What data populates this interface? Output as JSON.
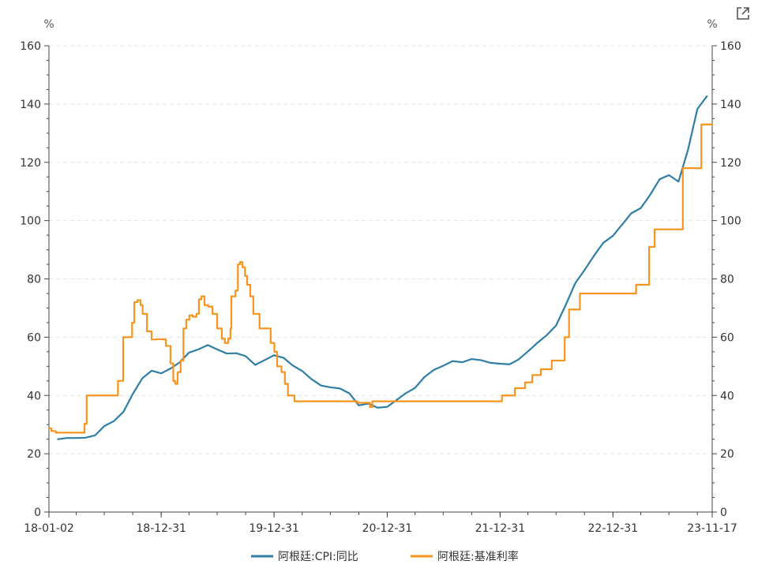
{
  "chart_data": {
    "type": "line",
    "title": "",
    "xlabel": "",
    "ylabel": "",
    "y_unit_left": "%",
    "y_unit_right": "%",
    "ylim": [
      0,
      160
    ],
    "y_ticks": [
      0,
      20,
      40,
      60,
      80,
      100,
      120,
      140,
      160
    ],
    "x_range": [
      "2018-01-02",
      "2023-11-17"
    ],
    "x_tick_labels": [
      {
        "date": "2018-01-02",
        "label": "18-01-02"
      },
      {
        "date": "2018-12-31",
        "label": "18-12-31"
      },
      {
        "date": "2019-12-31",
        "label": "19-12-31"
      },
      {
        "date": "2020-12-31",
        "label": "20-12-31"
      },
      {
        "date": "2021-12-31",
        "label": "21-12-31"
      },
      {
        "date": "2022-12-31",
        "label": "22-12-31"
      },
      {
        "date": "2023-11-17",
        "label": "23-11-17"
      }
    ],
    "grid": true,
    "legend_position": "bottom",
    "series": [
      {
        "name": "阿根廷:CPI:同比",
        "color": "#2e7ea6",
        "step": false,
        "points": [
          [
            "2018-01-31",
            25.0
          ],
          [
            "2018-02-28",
            25.4
          ],
          [
            "2018-03-31",
            25.4
          ],
          [
            "2018-04-30",
            25.5
          ],
          [
            "2018-05-31",
            26.3
          ],
          [
            "2018-06-30",
            29.5
          ],
          [
            "2018-07-31",
            31.2
          ],
          [
            "2018-08-31",
            34.4
          ],
          [
            "2018-09-30",
            40.5
          ],
          [
            "2018-10-31",
            45.9
          ],
          [
            "2018-11-30",
            48.5
          ],
          [
            "2018-12-31",
            47.6
          ],
          [
            "2019-01-31",
            49.3
          ],
          [
            "2019-02-28",
            51.3
          ],
          [
            "2019-03-31",
            54.7
          ],
          [
            "2019-04-30",
            55.8
          ],
          [
            "2019-05-31",
            57.3
          ],
          [
            "2019-06-30",
            55.8
          ],
          [
            "2019-07-31",
            54.4
          ],
          [
            "2019-08-31",
            54.5
          ],
          [
            "2019-09-30",
            53.5
          ],
          [
            "2019-10-31",
            50.5
          ],
          [
            "2019-11-30",
            52.1
          ],
          [
            "2019-12-31",
            53.8
          ],
          [
            "2020-01-31",
            52.9
          ],
          [
            "2020-02-29",
            50.3
          ],
          [
            "2020-03-31",
            48.4
          ],
          [
            "2020-04-30",
            45.6
          ],
          [
            "2020-05-31",
            43.4
          ],
          [
            "2020-06-30",
            42.8
          ],
          [
            "2020-07-31",
            42.4
          ],
          [
            "2020-08-31",
            40.7
          ],
          [
            "2020-09-30",
            36.6
          ],
          [
            "2020-10-31",
            37.2
          ],
          [
            "2020-11-30",
            35.8
          ],
          [
            "2020-12-31",
            36.1
          ],
          [
            "2021-01-31",
            38.5
          ],
          [
            "2021-02-28",
            40.7
          ],
          [
            "2021-03-31",
            42.6
          ],
          [
            "2021-04-30",
            46.3
          ],
          [
            "2021-05-31",
            48.8
          ],
          [
            "2021-06-30",
            50.2
          ],
          [
            "2021-07-31",
            51.8
          ],
          [
            "2021-08-31",
            51.4
          ],
          [
            "2021-09-30",
            52.5
          ],
          [
            "2021-10-31",
            52.1
          ],
          [
            "2021-11-30",
            51.2
          ],
          [
            "2021-12-31",
            50.9
          ],
          [
            "2022-01-31",
            50.7
          ],
          [
            "2022-02-28",
            52.3
          ],
          [
            "2022-03-31",
            55.1
          ],
          [
            "2022-04-30",
            58.0
          ],
          [
            "2022-05-31",
            60.7
          ],
          [
            "2022-06-30",
            64.0
          ],
          [
            "2022-07-31",
            71.0
          ],
          [
            "2022-08-31",
            78.5
          ],
          [
            "2022-09-30",
            83.0
          ],
          [
            "2022-10-31",
            88.0
          ],
          [
            "2022-11-30",
            92.4
          ],
          [
            "2022-12-31",
            94.8
          ],
          [
            "2023-01-31",
            98.8
          ],
          [
            "2023-02-28",
            102.5
          ],
          [
            "2023-03-31",
            104.3
          ],
          [
            "2023-04-30",
            108.8
          ],
          [
            "2023-05-31",
            114.2
          ],
          [
            "2023-06-30",
            115.6
          ],
          [
            "2023-07-31",
            113.4
          ],
          [
            "2023-08-31",
            124.4
          ],
          [
            "2023-09-30",
            138.3
          ],
          [
            "2023-10-31",
            142.7
          ]
        ]
      },
      {
        "name": "阿根廷:基准利率",
        "color": "#f7941d",
        "step": true,
        "points": [
          [
            "2018-01-02",
            28.75
          ],
          [
            "2018-01-10",
            27.8
          ],
          [
            "2018-01-24",
            27.25
          ],
          [
            "2018-04-26",
            27.25
          ],
          [
            "2018-04-27",
            30.25
          ],
          [
            "2018-05-04",
            40.0
          ],
          [
            "2018-08-13",
            45.0
          ],
          [
            "2018-08-30",
            60.0
          ],
          [
            "2018-09-28",
            65.0
          ],
          [
            "2018-10-05",
            72.0
          ],
          [
            "2018-10-15",
            72.7
          ],
          [
            "2018-10-25",
            71.0
          ],
          [
            "2018-11-01",
            68.0
          ],
          [
            "2018-11-15",
            62.0
          ],
          [
            "2018-11-30",
            59.2
          ],
          [
            "2018-12-15",
            59.3
          ],
          [
            "2018-12-31",
            59.25
          ],
          [
            "2019-01-15",
            57.0
          ],
          [
            "2019-01-30",
            51.0
          ],
          [
            "2019-02-08",
            45.0
          ],
          [
            "2019-02-14",
            44.0
          ],
          [
            "2019-02-22",
            48.0
          ],
          [
            "2019-03-04",
            52.0
          ],
          [
            "2019-03-13",
            63.0
          ],
          [
            "2019-03-22",
            66.0
          ],
          [
            "2019-04-01",
            67.5
          ],
          [
            "2019-04-12",
            67.0
          ],
          [
            "2019-04-24",
            68.0
          ],
          [
            "2019-05-02",
            73.0
          ],
          [
            "2019-05-10",
            74.0
          ],
          [
            "2019-05-20",
            71.0
          ],
          [
            "2019-06-01",
            70.5
          ],
          [
            "2019-06-15",
            68.0
          ],
          [
            "2019-06-30",
            63.0
          ],
          [
            "2019-07-15",
            59.5
          ],
          [
            "2019-07-25",
            58.0
          ],
          [
            "2019-08-05",
            59.5
          ],
          [
            "2019-08-12",
            63.0
          ],
          [
            "2019-08-15",
            74.0
          ],
          [
            "2019-08-28",
            76.0
          ],
          [
            "2019-09-05",
            85.0
          ],
          [
            "2019-09-12",
            85.8
          ],
          [
            "2019-09-20",
            84.0
          ],
          [
            "2019-09-28",
            81.0
          ],
          [
            "2019-10-05",
            78.0
          ],
          [
            "2019-10-15",
            74.0
          ],
          [
            "2019-10-25",
            68.0
          ],
          [
            "2019-11-14",
            63.0
          ],
          [
            "2019-12-20",
            58.0
          ],
          [
            "2020-01-01",
            55.0
          ],
          [
            "2020-01-10",
            50.0
          ],
          [
            "2020-01-24",
            48.0
          ],
          [
            "2020-02-04",
            44.0
          ],
          [
            "2020-02-14",
            40.0
          ],
          [
            "2020-03-06",
            38.0
          ],
          [
            "2020-09-17",
            38.0
          ],
          [
            "2020-09-25",
            37.5
          ],
          [
            "2020-11-05",
            36.0
          ],
          [
            "2020-11-13",
            38.0
          ],
          [
            "2022-01-06",
            40.0
          ],
          [
            "2022-02-17",
            42.5
          ],
          [
            "2022-03-22",
            44.5
          ],
          [
            "2022-04-14",
            47.0
          ],
          [
            "2022-05-12",
            49.0
          ],
          [
            "2022-06-16",
            52.0
          ],
          [
            "2022-07-28",
            60.0
          ],
          [
            "2022-08-11",
            69.5
          ],
          [
            "2022-09-15",
            75.0
          ],
          [
            "2023-03-16",
            78.0
          ],
          [
            "2023-04-27",
            91.0
          ],
          [
            "2023-05-15",
            97.0
          ],
          [
            "2023-08-14",
            118.0
          ],
          [
            "2023-10-13",
            133.0
          ],
          [
            "2023-11-17",
            133.0
          ]
        ]
      }
    ]
  },
  "ui": {
    "export_icon": "external-link-icon"
  }
}
